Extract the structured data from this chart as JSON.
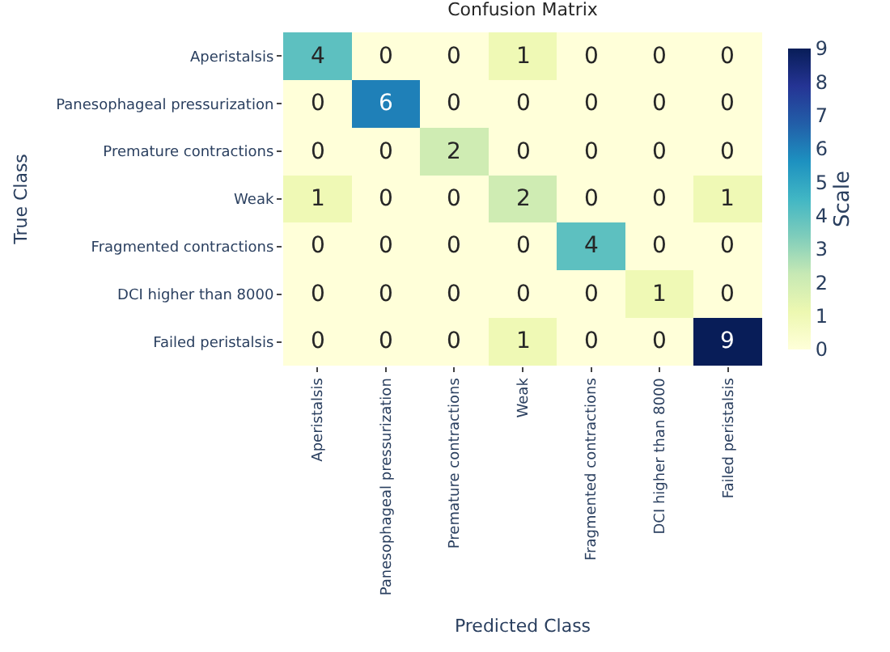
{
  "chart_data": {
    "type": "heatmap",
    "title": "Confusion Matrix",
    "xlabel": "Predicted Class",
    "ylabel": "True Class",
    "clabel": "Scale",
    "categories": [
      "Aperistalsis",
      "Panesophageal pressurization",
      "Premature contractions",
      "Weak",
      "Fragmented contractions",
      "DCI higher than 8000",
      "Failed peristalsis"
    ],
    "y_categories": [
      "Aperistalsis",
      "Panesophageal pressurization",
      "Premature contractions",
      "Weak",
      "Fragmented contractions",
      "DCI higher than 8000",
      "Failed peristalsis"
    ],
    "cells": [
      [
        4,
        0,
        0,
        1,
        0,
        0,
        0
      ],
      [
        0,
        6,
        0,
        0,
        0,
        0,
        0
      ],
      [
        0,
        0,
        2,
        0,
        0,
        0,
        0
      ],
      [
        1,
        0,
        0,
        2,
        0,
        0,
        1
      ],
      [
        0,
        0,
        0,
        0,
        4,
        0,
        0
      ],
      [
        0,
        0,
        0,
        0,
        0,
        1,
        0
      ],
      [
        0,
        0,
        0,
        1,
        0,
        0,
        9
      ]
    ],
    "clim": [
      0,
      9
    ],
    "cticks": [
      0,
      1,
      2,
      3,
      4,
      5,
      6,
      7,
      8,
      9
    ],
    "data_labels": true
  }
}
